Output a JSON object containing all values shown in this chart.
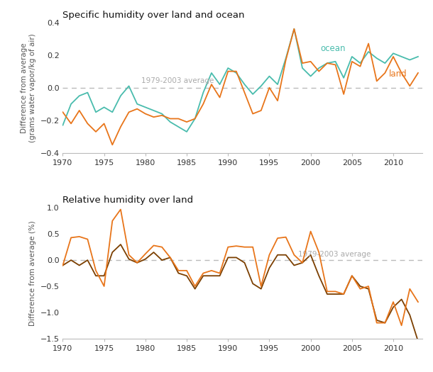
{
  "title1": "Specific humidity over land and ocean",
  "title2": "Relative humidity over land",
  "ylabel1": "Difference from average\n(grams water vapor/kg of air)",
  "ylabel2": "Difference from average (%)",
  "avg_label": "1979-2003 average",
  "ocean_color": "#49BCAD",
  "land_color": "#E8751A",
  "rh_color1": "#E8751A",
  "rh_color2": "#7B3F00",
  "years_sh": [
    1970,
    1971,
    1972,
    1973,
    1974,
    1975,
    1976,
    1977,
    1978,
    1979,
    1980,
    1981,
    1982,
    1983,
    1984,
    1985,
    1986,
    1987,
    1988,
    1989,
    1990,
    1991,
    1992,
    1993,
    1994,
    1995,
    1996,
    1997,
    1998,
    1999,
    2000,
    2001,
    2002,
    2003,
    2004,
    2005,
    2006,
    2007,
    2008,
    2009,
    2010,
    2011,
    2012,
    2013
  ],
  "ocean_vals": [
    -0.23,
    -0.1,
    -0.05,
    -0.03,
    -0.15,
    -0.12,
    -0.15,
    -0.05,
    0.01,
    -0.1,
    -0.12,
    -0.14,
    -0.16,
    -0.21,
    -0.24,
    -0.27,
    -0.19,
    -0.03,
    0.09,
    0.02,
    0.12,
    0.09,
    0.02,
    -0.04,
    0.01,
    0.07,
    0.02,
    0.18,
    0.36,
    0.12,
    0.07,
    0.12,
    0.15,
    0.16,
    0.06,
    0.19,
    0.15,
    0.22,
    0.18,
    0.15,
    0.21,
    0.19,
    0.17,
    0.19
  ],
  "land_vals": [
    -0.15,
    -0.22,
    -0.14,
    -0.22,
    -0.27,
    -0.22,
    -0.35,
    -0.24,
    -0.15,
    -0.13,
    -0.16,
    -0.18,
    -0.17,
    -0.19,
    -0.19,
    -0.21,
    -0.19,
    -0.1,
    0.02,
    -0.06,
    0.1,
    0.1,
    -0.03,
    -0.16,
    -0.14,
    0.0,
    -0.08,
    0.17,
    0.36,
    0.15,
    0.16,
    0.1,
    0.15,
    0.14,
    -0.04,
    0.16,
    0.13,
    0.27,
    0.04,
    0.09,
    0.19,
    0.09,
    0.01,
    0.09
  ],
  "years_rh": [
    1970,
    1971,
    1972,
    1973,
    1974,
    1975,
    1976,
    1977,
    1978,
    1979,
    1980,
    1981,
    1982,
    1983,
    1984,
    1985,
    1986,
    1987,
    1988,
    1989,
    1990,
    1991,
    1992,
    1993,
    1994,
    1995,
    1996,
    1997,
    1998,
    1999,
    2000,
    2001,
    2002,
    2003,
    2004,
    2005,
    2006,
    2007,
    2008,
    2009,
    2010,
    2011,
    2012,
    2013
  ],
  "rh_orange_vals": [
    -0.1,
    0.43,
    0.45,
    0.4,
    -0.2,
    -0.5,
    0.75,
    0.97,
    0.1,
    -0.05,
    0.12,
    0.28,
    0.25,
    0.05,
    -0.2,
    -0.2,
    -0.5,
    -0.25,
    -0.2,
    -0.25,
    0.25,
    0.27,
    0.25,
    0.25,
    -0.5,
    0.1,
    0.42,
    0.44,
    0.1,
    -0.05,
    0.55,
    0.15,
    -0.6,
    -0.6,
    -0.65,
    -0.3,
    -0.55,
    -0.5,
    -1.2,
    -1.2,
    -0.8,
    -1.25,
    -0.55,
    -0.8
  ],
  "rh_dark_vals": [
    -0.1,
    0.0,
    -0.1,
    0.0,
    -0.3,
    -0.3,
    0.15,
    0.3,
    0.02,
    -0.05,
    0.02,
    0.15,
    0.0,
    0.05,
    -0.25,
    -0.3,
    -0.55,
    -0.3,
    -0.3,
    -0.3,
    0.05,
    0.05,
    -0.05,
    -0.45,
    -0.55,
    -0.15,
    0.1,
    0.1,
    -0.1,
    -0.05,
    0.1,
    -0.3,
    -0.65,
    -0.65,
    -0.65,
    -0.3,
    -0.5,
    -0.55,
    -1.15,
    -1.2,
    -0.9,
    -0.75,
    -1.05,
    -1.55
  ],
  "ylim1": [
    -0.4,
    0.4
  ],
  "ylim2": [
    -1.5,
    1.0
  ],
  "yticks1": [
    -0.4,
    -0.2,
    0.0,
    0.2,
    0.4
  ],
  "yticks2": [
    -1.5,
    -1.0,
    -0.5,
    0.0,
    0.5,
    1.0
  ],
  "xticks": [
    1970,
    1975,
    1980,
    1985,
    1990,
    1995,
    2000,
    2005,
    2010
  ],
  "xlim": [
    1970,
    2013.5
  ]
}
